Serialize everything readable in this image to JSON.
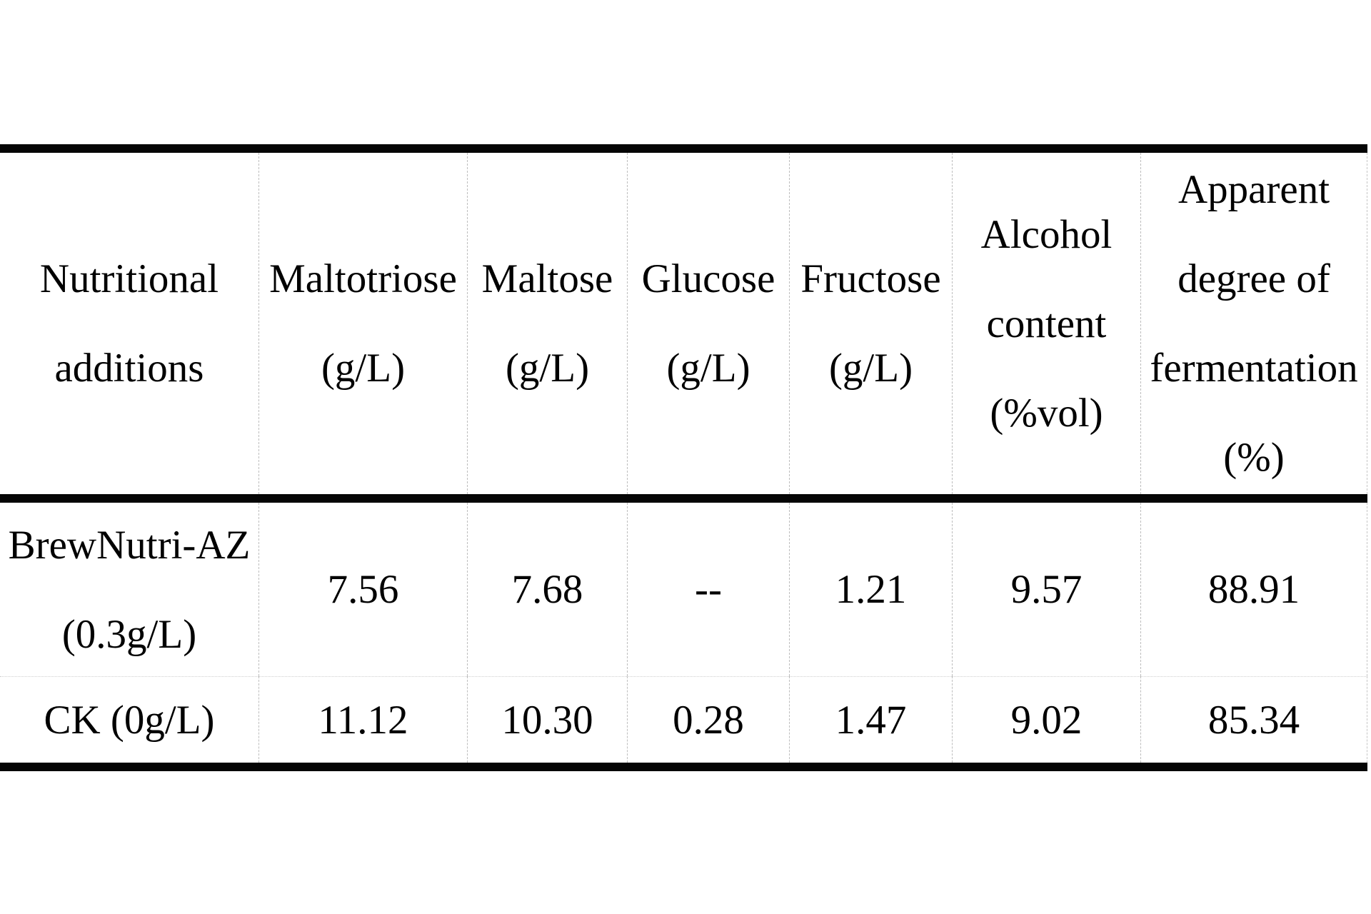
{
  "page": {
    "background_color": "#ffffff",
    "text_color": "#000000",
    "thick_rule_color": "#050505",
    "dashed_line_color": "#bdbdbd"
  },
  "table": {
    "header": {
      "nutritional": {
        "l1": "Nutritional",
        "l2": "additions"
      },
      "maltotriose": {
        "l1": "Maltotriose",
        "l2": "(g/L)"
      },
      "maltose": {
        "l1": "Maltose",
        "l2": "(g/L)"
      },
      "glucose": {
        "l1": "Glucose",
        "l2": "(g/L)"
      },
      "fructose": {
        "l1": "Fructose",
        "l2": "(g/L)"
      },
      "alcohol": {
        "l1": "Alcohol",
        "l2": "content",
        "l3": "(%vol)"
      },
      "fermentation": {
        "l1": "Apparent",
        "l2": "degree of",
        "l3": "fermentation",
        "l4": "(%)"
      }
    },
    "rows": [
      {
        "label_l1": "BrewNutri-AZ",
        "label_l2": "(0.3g/L)",
        "maltotriose": "7.56",
        "maltose": "7.68",
        "glucose": "--",
        "fructose": "1.21",
        "alcohol": "9.57",
        "fermentation": "88.91"
      },
      {
        "label_l1": "CK (0g/L)",
        "maltotriose": "11.12",
        "maltose": "10.30",
        "glucose": "0.28",
        "fructose": "1.47",
        "alcohol": "9.02",
        "fermentation": "85.34"
      }
    ]
  }
}
